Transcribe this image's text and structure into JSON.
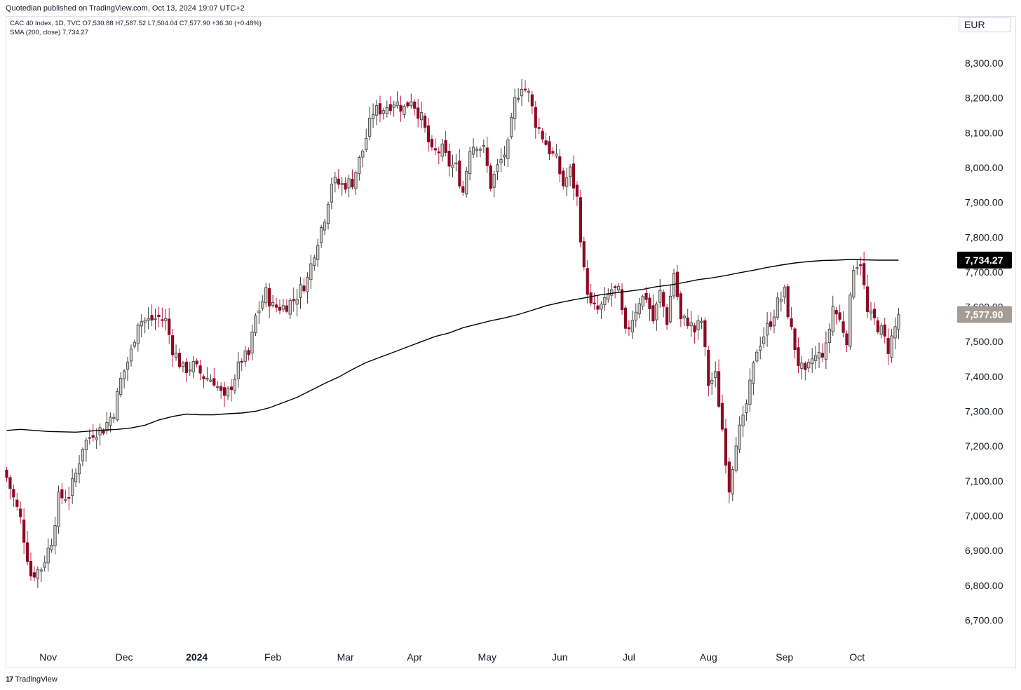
{
  "header": {
    "publisher": "Quotedian published on TradingView.com, Oct 13, 2024 19:07 UTC+2"
  },
  "legend": {
    "symbol_line": "CAC 40 Index, 1D, TVC  O7,530.88  H7,587.52  L7,504.04  C7,577.90  +36.30 (+0.48%)",
    "sma_line": "SMA (200, close)  7,734.27"
  },
  "currency": "EUR",
  "footer": {
    "logo": "17",
    "brand": "TradingView"
  },
  "chart_data": {
    "type": "candlestick",
    "title": "CAC 40 Index, 1D, TVC",
    "currency": "EUR",
    "y_ticks": [
      "8,300.00",
      "8,200.00",
      "8,100.00",
      "8,000.00",
      "7,900.00",
      "7,800.00",
      "7,700.00",
      "7,600.00",
      "7,500.00",
      "7,400.00",
      "7,300.00",
      "7,200.00",
      "7,100.00",
      "7,000.00",
      "6,900.00",
      "6,800.00",
      "6,700.00"
    ],
    "y_tick_values": [
      8300,
      8200,
      8100,
      8000,
      7900,
      7800,
      7700,
      7600,
      7500,
      7400,
      7300,
      7200,
      7100,
      7000,
      6900,
      6800,
      6700
    ],
    "ylim": [
      6660,
      8400
    ],
    "x_ticks": [
      {
        "label": "Nov",
        "day": 12,
        "bold": false
      },
      {
        "label": "Dec",
        "day": 34,
        "bold": false
      },
      {
        "label": "2024",
        "day": 55,
        "bold": true
      },
      {
        "label": "Feb",
        "day": 77,
        "bold": false
      },
      {
        "label": "Mar",
        "day": 98,
        "bold": false
      },
      {
        "label": "Apr",
        "day": 118,
        "bold": false
      },
      {
        "label": "May",
        "day": 139,
        "bold": false
      },
      {
        "label": "Jun",
        "day": 160,
        "bold": false
      },
      {
        "label": "Jul",
        "day": 180,
        "bold": false
      },
      {
        "label": "Aug",
        "day": 203,
        "bold": false
      },
      {
        "label": "Sep",
        "day": 225,
        "bold": false
      },
      {
        "label": "Oct",
        "day": 246,
        "bold": false
      }
    ],
    "x_range_days": [
      0,
      284
    ],
    "close_keypoints": [
      [
        0,
        7110
      ],
      [
        4,
        6990
      ],
      [
        7,
        6830
      ],
      [
        10,
        6850
      ],
      [
        13,
        6930
      ],
      [
        15,
        7050
      ],
      [
        18,
        7060
      ],
      [
        20,
        7120
      ],
      [
        22,
        7200
      ],
      [
        25,
        7240
      ],
      [
        28,
        7250
      ],
      [
        31,
        7300
      ],
      [
        33,
        7390
      ],
      [
        36,
        7470
      ],
      [
        38,
        7560
      ],
      [
        41,
        7560
      ],
      [
        44,
        7570
      ],
      [
        46,
        7560
      ],
      [
        48,
        7480
      ],
      [
        51,
        7420
      ],
      [
        54,
        7430
      ],
      [
        57,
        7400
      ],
      [
        60,
        7390
      ],
      [
        63,
        7330
      ],
      [
        66,
        7400
      ],
      [
        68,
        7450
      ],
      [
        70,
        7460
      ],
      [
        72,
        7570
      ],
      [
        75,
        7640
      ],
      [
        77,
        7600
      ],
      [
        80,
        7600
      ],
      [
        83,
        7620
      ],
      [
        85,
        7650
      ],
      [
        87,
        7680
      ],
      [
        89,
        7760
      ],
      [
        92,
        7860
      ],
      [
        94,
        7960
      ],
      [
        97,
        7950
      ],
      [
        100,
        7960
      ],
      [
        103,
        8050
      ],
      [
        106,
        8160
      ],
      [
        109,
        8170
      ],
      [
        112,
        8190
      ],
      [
        115,
        8170
      ],
      [
        117,
        8200
      ],
      [
        120,
        8140
      ],
      [
        123,
        8040
      ],
      [
        126,
        8050
      ],
      [
        128,
        8010
      ],
      [
        130,
        8000
      ],
      [
        132,
        7930
      ],
      [
        134,
        8060
      ],
      [
        136,
        8070
      ],
      [
        138,
        8050
      ],
      [
        140,
        7950
      ],
      [
        142,
        8000
      ],
      [
        145,
        8060
      ],
      [
        147,
        8190
      ],
      [
        149,
        8240
      ],
      [
        151,
        8210
      ],
      [
        153,
        8130
      ],
      [
        155,
        8090
      ],
      [
        157,
        8050
      ],
      [
        159,
        8020
      ],
      [
        161,
        7950
      ],
      [
        163,
        7990
      ],
      [
        165,
        7910
      ],
      [
        167,
        7700
      ],
      [
        169,
        7600
      ],
      [
        171,
        7590
      ],
      [
        173,
        7610
      ],
      [
        175,
        7650
      ],
      [
        177,
        7640
      ],
      [
        179,
        7520
      ],
      [
        181,
        7570
      ],
      [
        183,
        7620
      ],
      [
        185,
        7630
      ],
      [
        187,
        7560
      ],
      [
        189,
        7640
      ],
      [
        191,
        7560
      ],
      [
        193,
        7700
      ],
      [
        195,
        7560
      ],
      [
        197,
        7560
      ],
      [
        199,
        7530
      ],
      [
        201,
        7560
      ],
      [
        203,
        7380
      ],
      [
        205,
        7400
      ],
      [
        207,
        7250
      ],
      [
        209,
        7080
      ],
      [
        211,
        7220
      ],
      [
        213,
        7270
      ],
      [
        215,
        7370
      ],
      [
        217,
        7480
      ],
      [
        219,
        7520
      ],
      [
        221,
        7560
      ],
      [
        223,
        7610
      ],
      [
        225,
        7640
      ],
      [
        227,
        7530
      ],
      [
        229,
        7440
      ],
      [
        231,
        7400
      ],
      [
        233,
        7450
      ],
      [
        235,
        7460
      ],
      [
        237,
        7480
      ],
      [
        239,
        7600
      ],
      [
        241,
        7560
      ],
      [
        243,
        7510
      ],
      [
        245,
        7720
      ],
      [
        247,
        7730
      ],
      [
        249,
        7580
      ],
      [
        251,
        7560
      ],
      [
        253,
        7530
      ],
      [
        255,
        7480
      ],
      [
        257,
        7540
      ],
      [
        258,
        7578
      ]
    ],
    "sma_200": {
      "name": "SMA (200, close)",
      "last_value": 7734.27,
      "points": [
        [
          0,
          7245
        ],
        [
          4,
          7248
        ],
        [
          8,
          7245
        ],
        [
          12,
          7242
        ],
        [
          16,
          7241
        ],
        [
          20,
          7240
        ],
        [
          24,
          7243
        ],
        [
          28,
          7246
        ],
        [
          32,
          7248
        ],
        [
          36,
          7252
        ],
        [
          40,
          7260
        ],
        [
          44,
          7275
        ],
        [
          48,
          7285
        ],
        [
          52,
          7292
        ],
        [
          56,
          7290
        ],
        [
          60,
          7290
        ],
        [
          64,
          7293
        ],
        [
          68,
          7295
        ],
        [
          72,
          7300
        ],
        [
          76,
          7310
        ],
        [
          80,
          7325
        ],
        [
          84,
          7340
        ],
        [
          88,
          7360
        ],
        [
          92,
          7380
        ],
        [
          96,
          7398
        ],
        [
          100,
          7420
        ],
        [
          104,
          7440
        ],
        [
          108,
          7455
        ],
        [
          112,
          7470
        ],
        [
          116,
          7485
        ],
        [
          120,
          7500
        ],
        [
          124,
          7515
        ],
        [
          128,
          7525
        ],
        [
          132,
          7540
        ],
        [
          136,
          7550
        ],
        [
          140,
          7560
        ],
        [
          144,
          7568
        ],
        [
          148,
          7578
        ],
        [
          152,
          7590
        ],
        [
          156,
          7603
        ],
        [
          160,
          7612
        ],
        [
          164,
          7620
        ],
        [
          168,
          7627
        ],
        [
          172,
          7635
        ],
        [
          176,
          7640
        ],
        [
          180,
          7645
        ],
        [
          184,
          7650
        ],
        [
          188,
          7658
        ],
        [
          192,
          7663
        ],
        [
          196,
          7670
        ],
        [
          200,
          7678
        ],
        [
          204,
          7683
        ],
        [
          208,
          7690
        ],
        [
          212,
          7698
        ],
        [
          216,
          7705
        ],
        [
          220,
          7713
        ],
        [
          224,
          7720
        ],
        [
          228,
          7726
        ],
        [
          232,
          7730
        ],
        [
          236,
          7733
        ],
        [
          240,
          7734
        ],
        [
          244,
          7736
        ],
        [
          248,
          7735
        ],
        [
          252,
          7734
        ],
        [
          258,
          7734
        ]
      ]
    },
    "price_tags": [
      {
        "label": "7,734.27",
        "value": 7734.27,
        "bg": "#000000",
        "fg": "#ffffff"
      },
      {
        "label": "7,577.90",
        "value": 7577.9,
        "bg": "#a59d93",
        "fg": "#ffffff"
      }
    ],
    "colors": {
      "up_body": "#d1ccc4",
      "up_border": "#3a3a3a",
      "down": "#8b0a25",
      "sma": "#000000",
      "wick_up": "#3a3a3a"
    }
  }
}
